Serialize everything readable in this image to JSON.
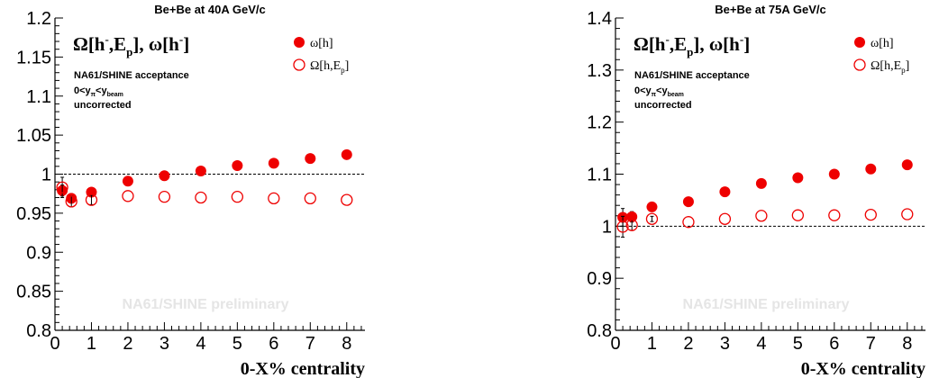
{
  "colors": {
    "marker": "#ee0000",
    "axis": "#000000",
    "reference": "#000000",
    "watermark": "#e5e5e5"
  },
  "x_axis_title": "0-X% centrality",
  "chart_data": [
    {
      "type": "scatter",
      "title": "Be+Be at 40A GeV/c",
      "big_label": {
        "main": "Ω[h",
        "sup1": "-",
        "mid": ",E",
        "sub": "p",
        "end": "], ω[h",
        "sup2": "-",
        "close": "]"
      },
      "notes": {
        "acceptance": "NA61/SHINE acceptance",
        "range_a": "0<y",
        "range_sub1": "π",
        "range_b": "<y",
        "range_sub2": "beam",
        "uncorrected": "uncorrected"
      },
      "watermark": "NA61/SHINE preliminary",
      "legend": {
        "filled": {
          "base": "ω[h]"
        },
        "open": {
          "base": "Ω[h,E",
          "sub": "p",
          "close": "]"
        }
      },
      "xlim": [
        0,
        8.5
      ],
      "ylim": [
        0.8,
        1.2
      ],
      "xticks": [
        0,
        1,
        2,
        3,
        4,
        5,
        6,
        7,
        8
      ],
      "yticks": [
        {
          "v": 0.8,
          "t": "0.8"
        },
        {
          "v": 0.85,
          "t": "0.85"
        },
        {
          "v": 0.9,
          "t": "0.9"
        },
        {
          "v": 0.95,
          "t": "0.95"
        },
        {
          "v": 1.0,
          "t": "1"
        },
        {
          "v": 1.05,
          "t": "1.05"
        },
        {
          "v": 1.1,
          "t": "1.1"
        },
        {
          "v": 1.15,
          "t": "1.15"
        },
        {
          "v": 1.2,
          "t": "1.2"
        }
      ],
      "reference_line": 1.0,
      "series": [
        {
          "marker": "filled",
          "x": [
            0.2,
            0.45,
            1,
            2,
            3,
            4,
            5,
            6,
            7,
            8
          ],
          "y": [
            0.979,
            0.969,
            0.977,
            0.991,
            0.998,
            1.004,
            1.011,
            1.014,
            1.02,
            1.025
          ],
          "err": [
            0.007,
            0.006,
            0.005,
            0,
            0,
            0,
            0,
            0,
            0,
            0
          ]
        },
        {
          "marker": "open",
          "x": [
            0.2,
            0.45,
            1,
            2,
            3,
            4,
            5,
            6,
            7,
            8
          ],
          "y": [
            0.983,
            0.965,
            0.967,
            0.972,
            0.971,
            0.97,
            0.971,
            0.969,
            0.969,
            0.967
          ],
          "err": [
            0.013,
            0.007,
            0.006,
            0,
            0,
            0,
            0,
            0,
            0,
            0
          ]
        }
      ]
    },
    {
      "type": "scatter",
      "title": "Be+Be at 75A GeV/c",
      "big_label": {
        "main": "Ω[h",
        "sup1": "-",
        "mid": ",E",
        "sub": "p",
        "end": "], ω[h",
        "sup2": "-",
        "close": "]"
      },
      "notes": {
        "acceptance": "NA61/SHINE acceptance",
        "range_a": "0<y",
        "range_sub1": "π",
        "range_b": "<y",
        "range_sub2": "beam",
        "uncorrected": "uncorrected"
      },
      "watermark": "NA61/SHINE preliminary",
      "legend": {
        "filled": {
          "base": "ω[h]"
        },
        "open": {
          "base": "Ω[h,E",
          "sub": "p",
          "close": "]"
        }
      },
      "xlim": [
        0,
        8.5
      ],
      "ylim": [
        0.8,
        1.4
      ],
      "xticks": [
        0,
        1,
        2,
        3,
        4,
        5,
        6,
        7,
        8
      ],
      "yticks": [
        {
          "v": 0.8,
          "t": "0.8"
        },
        {
          "v": 0.9,
          "t": "0.9"
        },
        {
          "v": 1.0,
          "t": "1"
        },
        {
          "v": 1.1,
          "t": "1.1"
        },
        {
          "v": 1.2,
          "t": "1.2"
        },
        {
          "v": 1.3,
          "t": "1.3"
        },
        {
          "v": 1.4,
          "t": "1.4"
        }
      ],
      "reference_line": 1.0,
      "series": [
        {
          "marker": "filled",
          "x": [
            0.2,
            0.45,
            1,
            2,
            3,
            4,
            5,
            6,
            7,
            8
          ],
          "y": [
            1.017,
            1.018,
            1.037,
            1.047,
            1.066,
            1.082,
            1.093,
            1.1,
            1.11,
            1.118
          ],
          "err": [
            0.017,
            0.01,
            0.005,
            0,
            0,
            0,
            0,
            0,
            0,
            0
          ]
        },
        {
          "marker": "open",
          "x": [
            0.2,
            0.45,
            1,
            2,
            3,
            4,
            5,
            6,
            7,
            8
          ],
          "y": [
            0.999,
            1.002,
            1.014,
            1.008,
            1.014,
            1.02,
            1.021,
            1.021,
            1.022,
            1.023
          ],
          "err": [
            0.02,
            0.01,
            0.005,
            0,
            0,
            0,
            0,
            0,
            0,
            0
          ]
        }
      ]
    }
  ]
}
